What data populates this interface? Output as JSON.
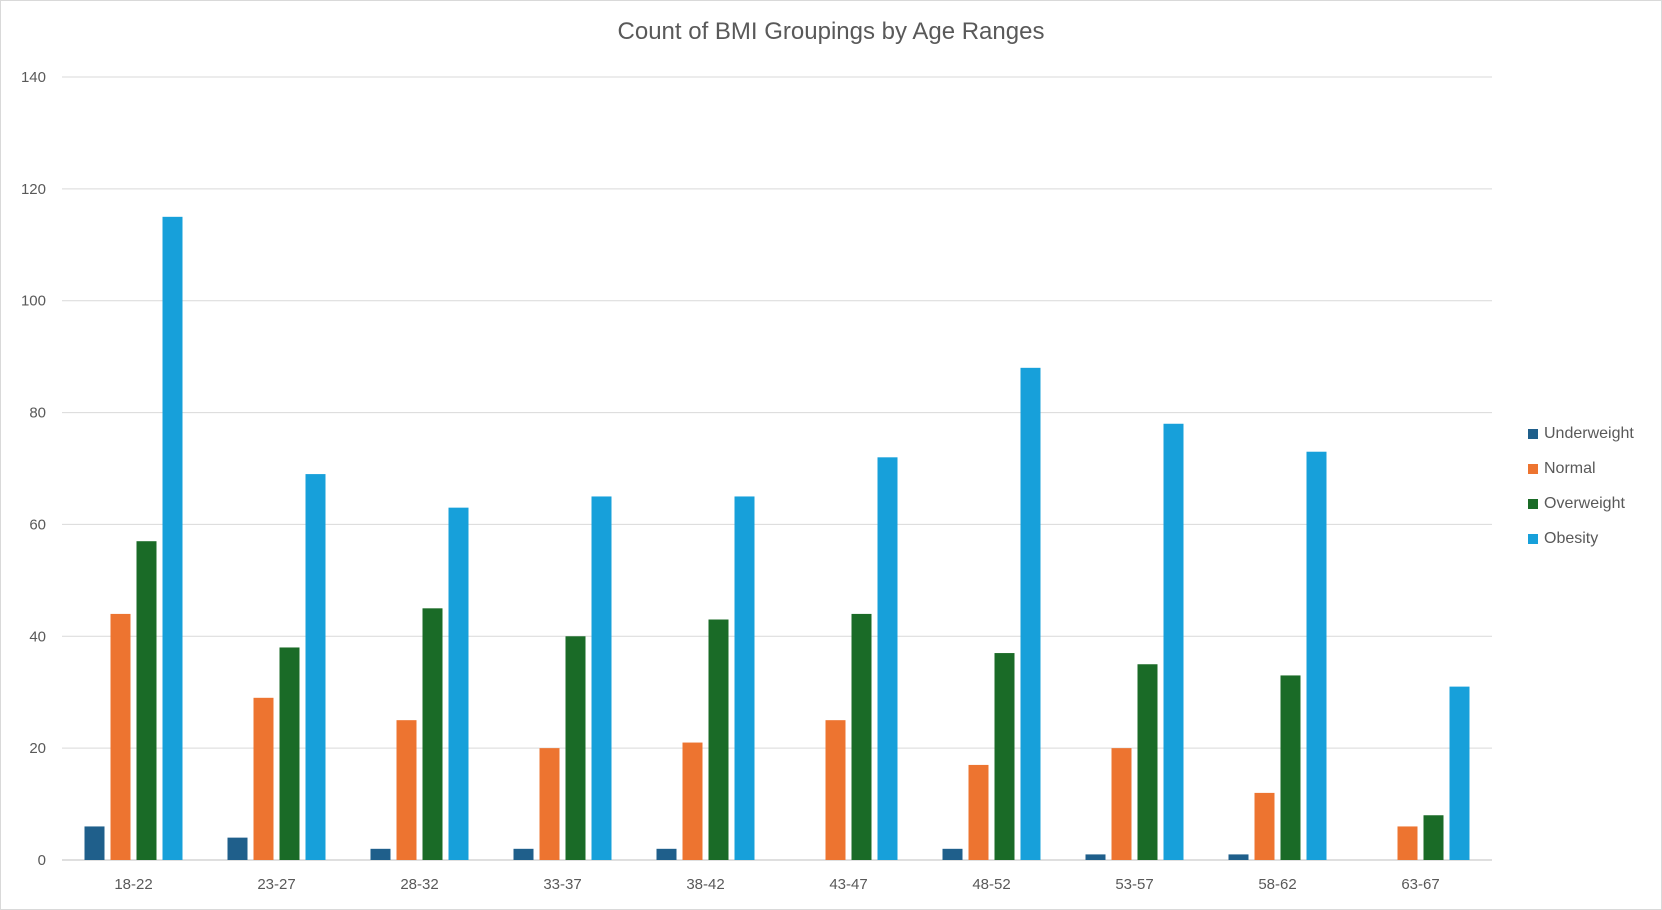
{
  "chart_data": {
    "type": "bar",
    "title": "Count of BMI Groupings by Age Ranges",
    "xlabel": "",
    "ylabel": "",
    "ylim": [
      0,
      140
    ],
    "yticks": [
      0,
      20,
      40,
      60,
      80,
      100,
      120,
      140
    ],
    "grid": true,
    "legend_position": "right",
    "categories": [
      "18-22",
      "23-27",
      "28-32",
      "33-37",
      "38-42",
      "43-47",
      "48-52",
      "53-57",
      "58-62",
      "63-67"
    ],
    "series": [
      {
        "name": "Underweight",
        "color": "#1f5f8b",
        "values": [
          6,
          4,
          2,
          2,
          2,
          0,
          2,
          1,
          1,
          0
        ]
      },
      {
        "name": "Normal",
        "color": "#ed7430",
        "values": [
          44,
          29,
          25,
          20,
          21,
          25,
          17,
          20,
          12,
          6
        ]
      },
      {
        "name": "Overweight",
        "color": "#1a6b27",
        "values": [
          57,
          38,
          45,
          40,
          43,
          44,
          37,
          35,
          33,
          8
        ]
      },
      {
        "name": "Obesity",
        "color": "#17a0da",
        "values": [
          115,
          69,
          63,
          65,
          65,
          72,
          88,
          78,
          73,
          31
        ]
      }
    ]
  }
}
